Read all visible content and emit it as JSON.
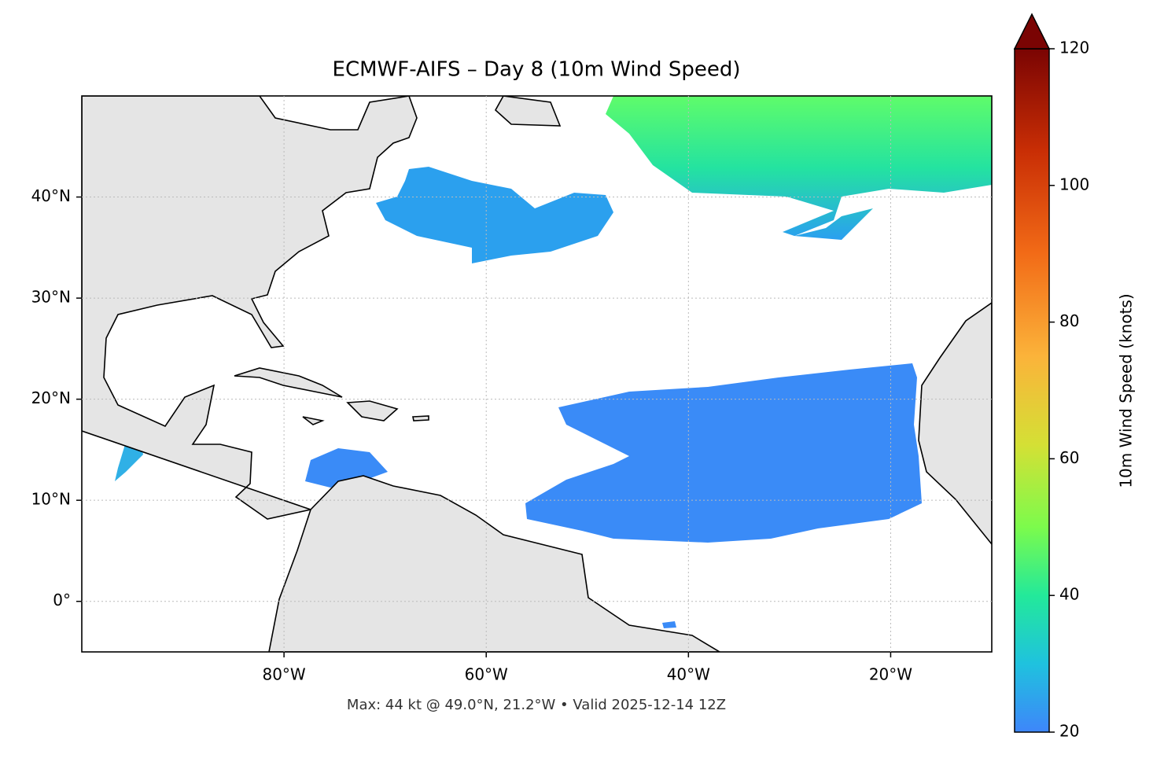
{
  "chart_data": {
    "type": "map",
    "title": "ECMWF-AIFS – Day 8 (10m Wind Speed)",
    "footer": "Max: 44 kt @ 49.0°N, 21.2°W • Valid 2025-12-14 12Z",
    "xlim": [
      -100,
      -10
    ],
    "xticks": [
      {
        "value": -80,
        "label": "80°W"
      },
      {
        "value": -60,
        "label": "60°W"
      },
      {
        "value": -40,
        "label": "40°W"
      },
      {
        "value": -20,
        "label": "20°W"
      }
    ],
    "ylim": [
      -5,
      50
    ],
    "yticks": [
      {
        "value": 0,
        "label": "0°"
      },
      {
        "value": 10,
        "label": "10°N"
      },
      {
        "value": 20,
        "label": "20°N"
      },
      {
        "value": 30,
        "label": "30°N"
      },
      {
        "value": 40,
        "label": "40°N"
      }
    ],
    "grid": true,
    "colorbar": {
      "label": "10m Wind Speed (knots)",
      "lim": [
        20,
        120
      ],
      "ticks": [
        20,
        40,
        60,
        80,
        100,
        120
      ],
      "extend": "max"
    }
  }
}
